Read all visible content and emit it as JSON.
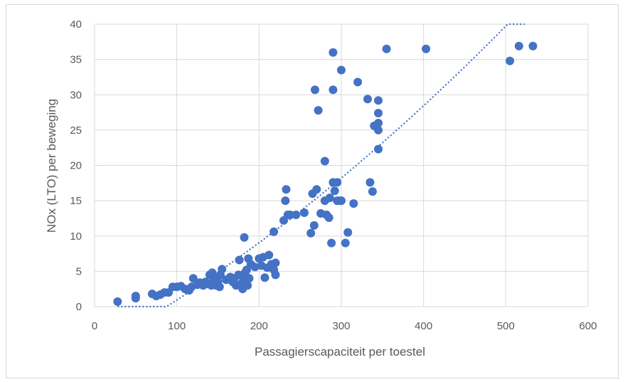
{
  "chart_data": {
    "type": "scatter",
    "title": "",
    "xlabel": "Passagierscapaciteit per toestel",
    "ylabel": "NOx (LTO) per beweging",
    "xlim": [
      0,
      600
    ],
    "ylim": [
      0,
      40
    ],
    "x_ticks": [
      "0",
      "100",
      "200",
      "300",
      "400",
      "500",
      "600"
    ],
    "y_ticks": [
      "0",
      "5",
      "10",
      "15",
      "20",
      "25",
      "30",
      "35",
      "40"
    ],
    "grid": true,
    "legend": "none",
    "trendline": {
      "type": "polynomial",
      "style": "dotted",
      "x_range": [
        28,
        523
      ]
    },
    "colors": {
      "points": "#4472c4",
      "grid": "#d9d9d9",
      "text": "#595959"
    },
    "series": [
      {
        "points": [
          [
            28,
            0.7
          ],
          [
            50,
            1.2
          ],
          [
            50,
            1.5
          ],
          [
            70,
            1.8
          ],
          [
            75,
            1.5
          ],
          [
            80,
            1.7
          ],
          [
            85,
            2.0
          ],
          [
            90,
            2.0
          ],
          [
            95,
            2.8
          ],
          [
            100,
            2.8
          ],
          [
            105,
            2.9
          ],
          [
            110,
            2.5
          ],
          [
            115,
            2.3
          ],
          [
            118,
            2.8
          ],
          [
            120,
            4.0
          ],
          [
            125,
            3.1
          ],
          [
            128,
            3.4
          ],
          [
            132,
            3.0
          ],
          [
            135,
            3.5
          ],
          [
            138,
            3.2
          ],
          [
            140,
            4.5
          ],
          [
            142,
            3.0
          ],
          [
            143,
            4.8
          ],
          [
            145,
            3.8
          ],
          [
            147,
            4.2
          ],
          [
            148,
            3.0
          ],
          [
            150,
            3.5
          ],
          [
            152,
            2.8
          ],
          [
            153,
            4.5
          ],
          [
            155,
            5.3
          ],
          [
            160,
            3.8
          ],
          [
            165,
            4.2
          ],
          [
            168,
            3.5
          ],
          [
            170,
            4.0
          ],
          [
            172,
            3.0
          ],
          [
            175,
            4.5
          ],
          [
            176,
            6.6
          ],
          [
            178,
            3.2
          ],
          [
            180,
            2.5
          ],
          [
            181,
            3.8
          ],
          [
            182,
            9.8
          ],
          [
            183,
            4.8
          ],
          [
            185,
            5.2
          ],
          [
            186,
            3.0
          ],
          [
            187,
            6.8
          ],
          [
            188,
            4.0
          ],
          [
            190,
            6.0
          ],
          [
            195,
            5.6
          ],
          [
            200,
            6.8
          ],
          [
            203,
            5.8
          ],
          [
            205,
            7.0
          ],
          [
            207,
            4.1
          ],
          [
            210,
            5.5
          ],
          [
            212,
            7.3
          ],
          [
            215,
            6.0
          ],
          [
            218,
            5.2
          ],
          [
            218,
            10.6
          ],
          [
            220,
            4.5
          ],
          [
            220,
            6.2
          ],
          [
            230,
            12.2
          ],
          [
            232,
            15.0
          ],
          [
            233,
            16.6
          ],
          [
            235,
            13.0
          ],
          [
            238,
            13.0
          ],
          [
            245,
            13.0
          ],
          [
            255,
            13.3
          ],
          [
            263,
            10.4
          ],
          [
            265,
            16.0
          ],
          [
            267,
            11.5
          ],
          [
            268,
            30.7
          ],
          [
            270,
            16.6
          ],
          [
            272,
            27.8
          ],
          [
            275,
            13.2
          ],
          [
            280,
            20.6
          ],
          [
            280,
            15.0
          ],
          [
            282,
            13.0
          ],
          [
            285,
            12.6
          ],
          [
            286,
            15.4
          ],
          [
            288,
            9.0
          ],
          [
            290,
            17.6
          ],
          [
            290,
            36.0
          ],
          [
            290,
            30.7
          ],
          [
            292,
            16.4
          ],
          [
            295,
            17.6
          ],
          [
            295,
            15.0
          ],
          [
            298,
            15.0
          ],
          [
            300,
            33.5
          ],
          [
            300,
            15.0
          ],
          [
            305,
            9.0
          ],
          [
            308,
            10.5
          ],
          [
            315,
            14.6
          ],
          [
            320,
            31.8
          ],
          [
            332,
            29.4
          ],
          [
            335,
            17.6
          ],
          [
            338,
            16.3
          ],
          [
            340,
            25.6
          ],
          [
            345,
            29.2
          ],
          [
            345,
            27.4
          ],
          [
            345,
            26.0
          ],
          [
            345,
            25.0
          ],
          [
            345,
            22.3
          ],
          [
            355,
            36.5
          ],
          [
            403,
            36.5
          ],
          [
            505,
            34.8
          ],
          [
            516,
            36.9
          ],
          [
            533,
            36.9
          ]
        ]
      }
    ]
  }
}
